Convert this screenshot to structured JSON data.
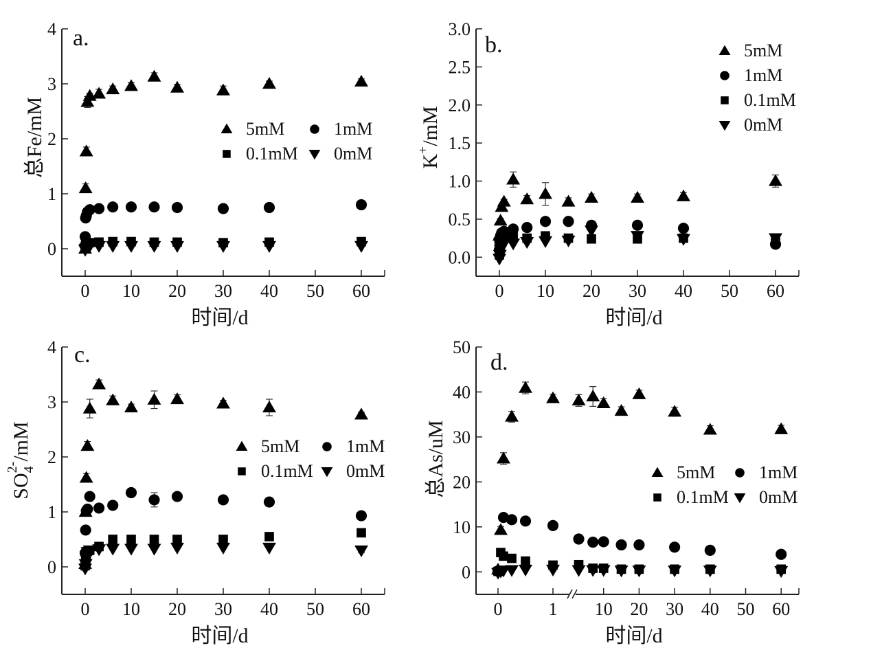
{
  "figure": {
    "background": "#ffffff",
    "marker_color": "#000000",
    "legend_entries": [
      "5mM",
      "1mM",
      "0.1mM",
      "0mM"
    ]
  },
  "chart_data": [
    {
      "id": "a",
      "type": "scatter",
      "panel_label": "a.",
      "title": "",
      "xlabel": "时间/d",
      "ylabel": "总Fe/mM",
      "xlim": [
        -5,
        65
      ],
      "ylim": [
        -0.5,
        4
      ],
      "xticks": [
        0,
        10,
        20,
        30,
        40,
        50,
        60
      ],
      "xtick_labels": [
        "0",
        "10",
        "20",
        "30",
        "40",
        "50",
        "60"
      ],
      "yticks": [
        0,
        1,
        2,
        3,
        4
      ],
      "ytick_labels": [
        "0",
        "1",
        "2",
        "3",
        "4"
      ],
      "grid": false,
      "legend": {
        "placement": "center-right",
        "columns": 2
      },
      "series": [
        {
          "name": "5mM",
          "marker": "triangle-up",
          "x": [
            0,
            0.1,
            0.25,
            0.5,
            1,
            3,
            6,
            10,
            15,
            20,
            30,
            40,
            60
          ],
          "y": [
            0,
            1.1,
            1.77,
            2.67,
            2.78,
            2.82,
            2.9,
            2.96,
            3.13,
            2.93,
            2.88,
            3.0,
            3.04
          ],
          "err": [
            0,
            0.08,
            0.08,
            0.1,
            0.05,
            0.08,
            0.06,
            0.06,
            0.07,
            0.06,
            0.08,
            0.05,
            0.05
          ]
        },
        {
          "name": "1mM",
          "marker": "circle",
          "x": [
            0,
            0.1,
            0.25,
            0.5,
            1,
            3,
            6,
            10,
            15,
            20,
            30,
            40,
            60
          ],
          "y": [
            0.22,
            0.56,
            0.6,
            0.67,
            0.71,
            0.73,
            0.76,
            0.76,
            0.76,
            0.75,
            0.73,
            0.75,
            0.8
          ],
          "err": [
            0,
            0,
            0,
            0,
            0,
            0,
            0,
            0,
            0,
            0,
            0,
            0,
            0
          ]
        },
        {
          "name": "0.1mM",
          "marker": "square",
          "x": [
            0,
            0.1,
            0.25,
            0.5,
            1,
            3,
            6,
            10,
            15,
            20,
            30,
            40,
            60
          ],
          "y": [
            0.02,
            0.06,
            0.08,
            0.1,
            0.11,
            0.12,
            0.13,
            0.13,
            0.12,
            0.12,
            0.11,
            0.12,
            0.13
          ],
          "err": [
            0,
            0,
            0,
            0,
            0,
            0,
            0,
            0,
            0,
            0,
            0,
            0,
            0
          ]
        },
        {
          "name": "0mM",
          "marker": "triangle-down",
          "x": [
            0,
            0.1,
            0.25,
            0.5,
            1,
            3,
            6,
            10,
            15,
            20,
            30,
            40,
            60
          ],
          "y": [
            -0.02,
            0.0,
            0.02,
            0.04,
            0.05,
            0.05,
            0.05,
            0.05,
            0.05,
            0.05,
            0.05,
            0.05,
            0.05
          ],
          "err": [
            0,
            0,
            0,
            0,
            0,
            0,
            0,
            0,
            0,
            0,
            0,
            0,
            0
          ]
        }
      ]
    },
    {
      "id": "b",
      "type": "scatter",
      "panel_label": "b.",
      "title": "",
      "xlabel": "时间/d",
      "ylabel": "K+/mM",
      "ylabel_parts": {
        "base": "K",
        "sup": "+",
        "rest": "/mM"
      },
      "xlim": [
        -5,
        65
      ],
      "ylim": [
        -0.25,
        3.0
      ],
      "xticks": [
        0,
        10,
        20,
        30,
        40,
        50,
        60
      ],
      "xtick_labels": [
        "0",
        "10",
        "20",
        "30",
        "40",
        "50",
        "60"
      ],
      "yticks": [
        0.0,
        0.5,
        1.0,
        1.5,
        2.0,
        2.5,
        3.0
      ],
      "ytick_labels": [
        "0.0",
        "0.5",
        "1.0",
        "1.5",
        "2.0",
        "2.5",
        "3.0"
      ],
      "grid": false,
      "legend": {
        "placement": "top-right",
        "columns": 1
      },
      "series": [
        {
          "name": "5mM",
          "marker": "triangle-up",
          "x": [
            0,
            0.1,
            0.25,
            0.5,
            1,
            3,
            6,
            10,
            15,
            20,
            30,
            40,
            60
          ],
          "y": [
            0.28,
            0.3,
            0.48,
            0.66,
            0.73,
            1.02,
            0.76,
            0.83,
            0.73,
            0.78,
            0.78,
            0.8,
            1.0
          ],
          "err": [
            0,
            0,
            0.03,
            0.03,
            0.03,
            0.1,
            0.05,
            0.15,
            0.05,
            0.05,
            0.05,
            0.05,
            0.08
          ]
        },
        {
          "name": "1mM",
          "marker": "circle",
          "x": [
            0,
            0.1,
            0.25,
            0.5,
            1,
            3,
            6,
            10,
            15,
            20,
            30,
            40,
            60
          ],
          "y": [
            0.1,
            0.2,
            0.28,
            0.32,
            0.34,
            0.37,
            0.39,
            0.47,
            0.47,
            0.42,
            0.42,
            0.38,
            0.17
          ],
          "err": [
            0,
            0,
            0,
            0,
            0,
            0,
            0,
            0,
            0,
            0,
            0,
            0,
            0
          ]
        },
        {
          "name": "0.1mM",
          "marker": "square",
          "x": [
            0,
            0.1,
            0.25,
            0.5,
            1,
            3,
            6,
            10,
            15,
            20,
            30,
            40,
            60
          ],
          "y": [
            0.03,
            0.08,
            0.15,
            0.2,
            0.25,
            0.27,
            0.25,
            0.28,
            0.25,
            0.24,
            0.24,
            0.25,
            0.23
          ],
          "err": [
            0,
            0,
            0,
            0,
            0,
            0,
            0,
            0,
            0.03,
            0.03,
            0,
            0,
            0
          ]
        },
        {
          "name": "0mM",
          "marker": "triangle-down",
          "x": [
            0,
            0.1,
            0.25,
            0.5,
            1,
            3,
            6,
            10,
            15,
            20,
            30,
            40,
            60
          ],
          "y": [
            -0.02,
            0.03,
            0.1,
            0.14,
            0.18,
            0.18,
            0.2,
            0.21,
            0.22,
            0.35,
            0.28,
            0.24,
            0.25
          ],
          "err": [
            0,
            0,
            0,
            0,
            0,
            0,
            0,
            0,
            0,
            0,
            0,
            0,
            0.03
          ]
        }
      ]
    },
    {
      "id": "c",
      "type": "scatter",
      "panel_label": "c.",
      "title": "",
      "xlabel": "时间/d",
      "ylabel": "SO42-/mM",
      "ylabel_parts": {
        "base": "SO",
        "sub": "4",
        "sup": "2-",
        "rest": "/mM"
      },
      "xlim": [
        -5,
        65
      ],
      "ylim": [
        -0.5,
        4
      ],
      "xticks": [
        0,
        10,
        20,
        30,
        40,
        50,
        60
      ],
      "xtick_labels": [
        "0",
        "10",
        "20",
        "30",
        "40",
        "50",
        "60"
      ],
      "yticks": [
        0,
        1,
        2,
        3,
        4
      ],
      "ytick_labels": [
        "0",
        "1",
        "2",
        "3",
        "4"
      ],
      "grid": false,
      "legend": {
        "placement": "center-right",
        "columns": 2
      },
      "series": [
        {
          "name": "5mM",
          "marker": "triangle-up",
          "x": [
            0,
            0.1,
            0.25,
            0.5,
            1,
            3,
            6,
            10,
            15,
            20,
            30,
            40,
            60
          ],
          "y": [
            0.05,
            1.0,
            1.62,
            2.2,
            2.88,
            3.32,
            3.03,
            2.9,
            3.04,
            3.05,
            2.97,
            2.9,
            2.77
          ],
          "err": [
            0,
            0.07,
            0.08,
            0.08,
            0.17,
            0.08,
            0.08,
            0.06,
            0.16,
            0.08,
            0.06,
            0.15,
            0.04
          ]
        },
        {
          "name": "1mM",
          "marker": "circle",
          "x": [
            0,
            0.1,
            0.25,
            0.5,
            1,
            3,
            6,
            10,
            15,
            20,
            30,
            40,
            60
          ],
          "y": [
            0.25,
            0.67,
            1.02,
            1.05,
            1.28,
            1.07,
            1.12,
            1.35,
            1.22,
            1.28,
            1.22,
            1.18,
            0.93
          ],
          "err": [
            0,
            0,
            0,
            0,
            0,
            0,
            0,
            0,
            0.13,
            0,
            0,
            0,
            0
          ]
        },
        {
          "name": "0.1mM",
          "marker": "square",
          "x": [
            0,
            0.1,
            0.25,
            0.5,
            1,
            3,
            6,
            10,
            15,
            20,
            30,
            40,
            60
          ],
          "y": [
            0.02,
            0.12,
            0.22,
            0.28,
            0.3,
            0.37,
            0.5,
            0.5,
            0.5,
            0.5,
            0.5,
            0.55,
            0.62
          ],
          "err": [
            0,
            0,
            0,
            0,
            0,
            0,
            0,
            0,
            0,
            0,
            0,
            0,
            0
          ]
        },
        {
          "name": "0mM",
          "marker": "triangle-down",
          "x": [
            0,
            0.1,
            0.25,
            0.5,
            1,
            3,
            6,
            10,
            15,
            20,
            30,
            40,
            60
          ],
          "y": [
            -0.03,
            0.05,
            0.2,
            0.27,
            0.3,
            0.32,
            0.33,
            0.33,
            0.33,
            0.35,
            0.35,
            0.35,
            0.3
          ],
          "err": [
            0,
            0,
            0,
            0,
            0,
            0,
            0,
            0,
            0,
            0,
            0,
            0,
            0.04
          ]
        }
      ]
    },
    {
      "id": "d",
      "type": "scatter",
      "panel_label": "d.",
      "title": "",
      "xlabel": "时间/d",
      "ylabel": "总As/uM",
      "x_axis_break": {
        "before": 1,
        "after": 3
      },
      "xlim": [
        -0.6,
        65
      ],
      "ylim": [
        -5,
        50
      ],
      "xticks": [
        0,
        1,
        10,
        20,
        30,
        40,
        50,
        60
      ],
      "xtick_labels": [
        "0",
        "1",
        "10",
        "20",
        "30",
        "40",
        "50",
        "60"
      ],
      "yticks": [
        0,
        10,
        20,
        30,
        40,
        50
      ],
      "ytick_labels": [
        "0",
        "10",
        "20",
        "30",
        "40",
        "50"
      ],
      "grid": false,
      "legend": {
        "placement": "center-right",
        "columns": 2
      },
      "series": [
        {
          "name": "5mM",
          "marker": "triangle-up",
          "x": [
            0,
            0.05,
            0.1,
            0.25,
            0.5,
            1,
            3,
            7,
            10,
            15,
            20,
            30,
            40,
            60
          ],
          "y": [
            0.5,
            9.3,
            25.2,
            34.5,
            40.9,
            38.6,
            38.1,
            39.0,
            37.5,
            35.8,
            39.5,
            35.6,
            31.6,
            31.7
          ],
          "err": [
            0,
            0.8,
            1.3,
            1.2,
            1.3,
            0.9,
            1.3,
            2.2,
            1.0,
            0.9,
            0.9,
            1.0,
            0.9,
            0.9
          ]
        },
        {
          "name": "1mM",
          "marker": "circle",
          "x": [
            0,
            0.1,
            0.25,
            0.5,
            1,
            3,
            7,
            10,
            15,
            20,
            30,
            40,
            60
          ],
          "y": [
            0.2,
            12.1,
            11.6,
            11.3,
            10.3,
            7.3,
            6.6,
            6.7,
            6.0,
            6.0,
            5.5,
            4.8,
            3.9
          ],
          "err": [
            0,
            0,
            0,
            0,
            0,
            0,
            0,
            0,
            0,
            0,
            0,
            0,
            0
          ]
        },
        {
          "name": "0.1mM",
          "marker": "square",
          "x": [
            0,
            0.05,
            0.1,
            0.25,
            0.5,
            1,
            3,
            7,
            10,
            15,
            20,
            30,
            40,
            60
          ],
          "y": [
            0.1,
            4.3,
            3.5,
            3.0,
            2.4,
            1.5,
            1.6,
            0.8,
            0.8,
            0.6,
            0.6,
            0.6,
            0.6,
            0.6
          ],
          "err": [
            0,
            0,
            0,
            0,
            0,
            0,
            0,
            0,
            0,
            0,
            0,
            0,
            0,
            0
          ]
        },
        {
          "name": "0mM",
          "marker": "triangle-down",
          "x": [
            0,
            0.05,
            0.1,
            0.25,
            0.5,
            1,
            3,
            7,
            10,
            15,
            20,
            30,
            40,
            60
          ],
          "y": [
            -0.2,
            0.1,
            0.3,
            0.4,
            0.5,
            0.5,
            0.4,
            0.4,
            0.4,
            0.3,
            0.3,
            0.3,
            0.3,
            0.2
          ],
          "err": [
            0,
            0,
            0,
            0,
            0,
            0,
            0,
            0,
            0,
            0,
            0,
            0,
            0,
            0
          ]
        }
      ]
    }
  ]
}
